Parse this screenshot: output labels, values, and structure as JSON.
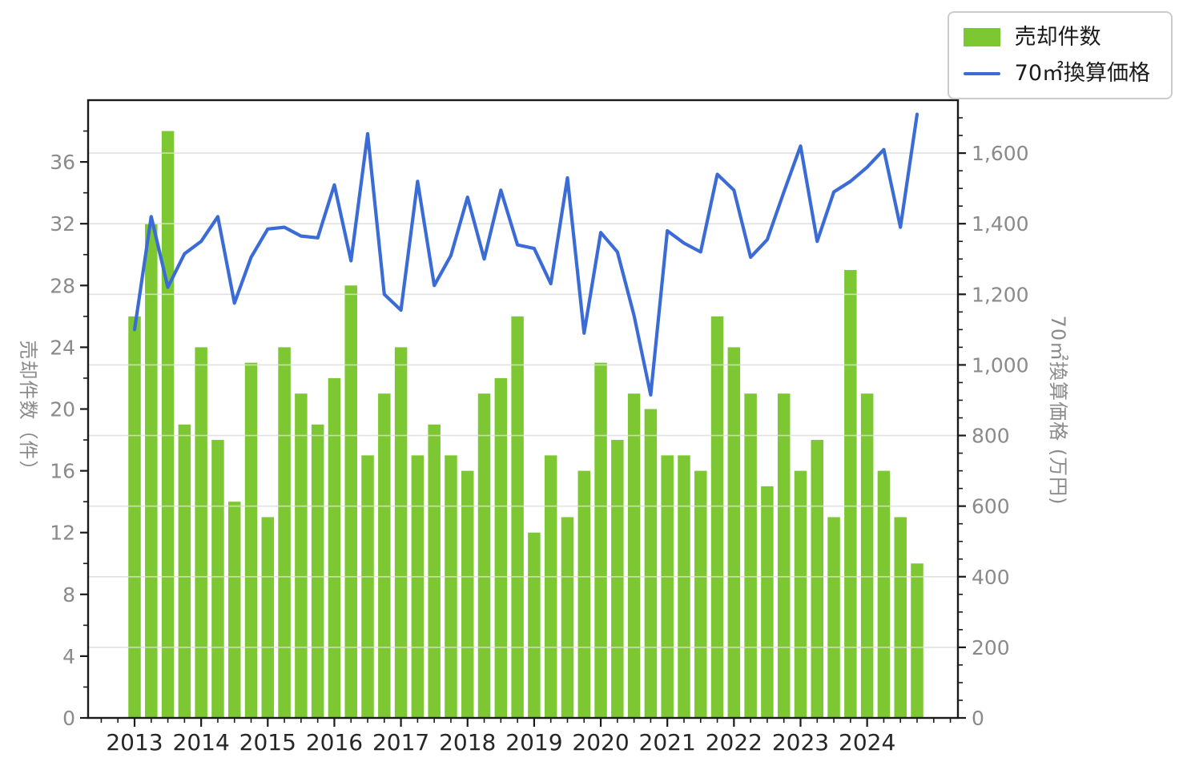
{
  "legend": {
    "items": [
      {
        "label": "売却件数",
        "marker": "bar-swatch",
        "color": "#7DC832"
      },
      {
        "label": "70㎡換算価格",
        "marker": "line-swatch",
        "color": "#3B6CD6"
      }
    ]
  },
  "left_axis": {
    "title": "売却件数（件）"
  },
  "right_axis": {
    "title": "70㎡換算価格 (万円)"
  },
  "chart_data": {
    "type": "bar+line",
    "x_years": [
      "2013",
      "2014",
      "2015",
      "2016",
      "2017",
      "2018",
      "2019",
      "2020",
      "2021",
      "2022",
      "2023",
      "2024"
    ],
    "quarters_per_year": 4,
    "categories": [
      "2013Q1",
      "2013Q2",
      "2013Q3",
      "2013Q4",
      "2014Q1",
      "2014Q2",
      "2014Q3",
      "2014Q4",
      "2015Q1",
      "2015Q2",
      "2015Q3",
      "2015Q4",
      "2016Q1",
      "2016Q2",
      "2016Q3",
      "2016Q4",
      "2017Q1",
      "2017Q2",
      "2017Q3",
      "2017Q4",
      "2018Q1",
      "2018Q2",
      "2018Q3",
      "2018Q4",
      "2019Q1",
      "2019Q2",
      "2019Q3",
      "2019Q4",
      "2020Q1",
      "2020Q2",
      "2020Q3",
      "2020Q4",
      "2021Q1",
      "2021Q2",
      "2021Q3",
      "2021Q4",
      "2022Q1",
      "2022Q2",
      "2022Q3",
      "2022Q4",
      "2023Q1",
      "2023Q2",
      "2023Q3",
      "2023Q4",
      "2024Q1",
      "2024Q2",
      "2024Q3",
      "2024Q4"
    ],
    "series": [
      {
        "name": "売却件数",
        "type": "bar",
        "axis": "left",
        "color": "#7DC832",
        "values": [
          26,
          32,
          38,
          19,
          24,
          18,
          14,
          23,
          13,
          24,
          21,
          19,
          22,
          28,
          17,
          21,
          24,
          17,
          19,
          17,
          16,
          21,
          22,
          26,
          12,
          17,
          13,
          16,
          23,
          18,
          21,
          20,
          17,
          17,
          16,
          26,
          24,
          21,
          15,
          21,
          16,
          18,
          13,
          29,
          21,
          16,
          13,
          10
        ]
      },
      {
        "name": "70㎡換算価格",
        "type": "line",
        "axis": "right",
        "color": "#3B6CD6",
        "values": [
          1100,
          1420,
          1220,
          1315,
          1350,
          1420,
          1175,
          1305,
          1385,
          1390,
          1365,
          1360,
          1510,
          1295,
          1655,
          1200,
          1155,
          1520,
          1225,
          1310,
          1475,
          1300,
          1495,
          1340,
          1330,
          1230,
          1530,
          1090,
          1375,
          1320,
          1140,
          915,
          1380,
          1345,
          1320,
          1540,
          1495,
          1305,
          1355,
          1490,
          1620,
          1350,
          1490,
          1520,
          1560,
          1610,
          1390,
          1710
        ]
      }
    ],
    "left_ylim": [
      0,
      40
    ],
    "right_ylim": [
      0,
      1750
    ],
    "left_ticks": [
      0,
      4,
      8,
      12,
      16,
      20,
      24,
      28,
      32,
      36
    ],
    "left_minor_step": 2,
    "right_ticks": [
      0,
      200,
      400,
      600,
      800,
      1000,
      1200,
      1400,
      1600
    ],
    "right_tick_labels": [
      "0",
      "200",
      "400",
      "600",
      "800",
      "1,000",
      "1,200",
      "1,400",
      "1,600"
    ],
    "right_minor_step": 50,
    "grid": "horizontal-on-right-ticks",
    "legend_position": "top-right",
    "colors": {
      "grid": "#DCDCDC",
      "spine": "#1a1a1a",
      "tick_label": "#8a8a8a",
      "year_label": "#262626",
      "background": "#ffffff"
    }
  }
}
